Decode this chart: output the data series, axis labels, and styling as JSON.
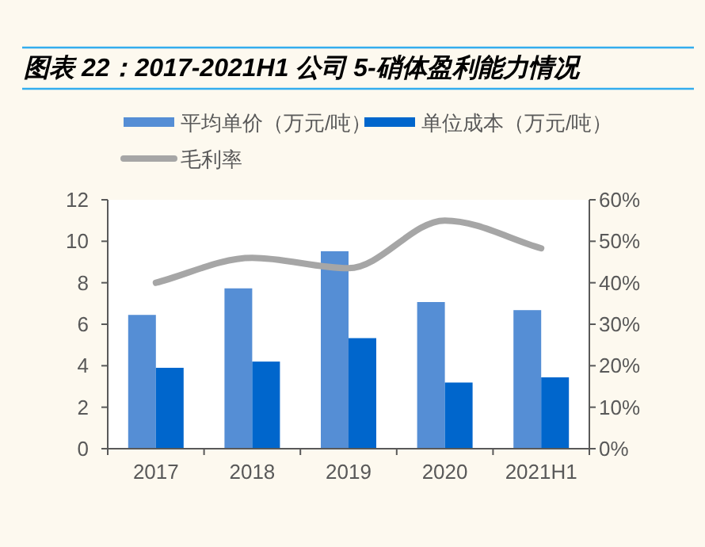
{
  "chart_data": {
    "type": "bar",
    "title": "图表 22：2017-2021H1 公司 5-硝体盈利能力情况",
    "categories": [
      "2017",
      "2018",
      "2019",
      "2020",
      "2021H1"
    ],
    "series": [
      {
        "name": "平均单价（万元/吨）",
        "color": "#558ed5",
        "values": [
          6.45,
          7.73,
          9.52,
          7.07,
          6.68
        ]
      },
      {
        "name": "单位成本（万元/吨）",
        "color": "#0066cc",
        "values": [
          3.9,
          4.2,
          5.33,
          3.19,
          3.44
        ]
      },
      {
        "name": "毛利率",
        "type": "line",
        "axis": "y2",
        "color": "#a6a6a6",
        "values": [
          40,
          46,
          43.5,
          55,
          48.3
        ]
      }
    ],
    "ylim": [
      0,
      12
    ],
    "yticks": [
      0,
      2,
      4,
      6,
      8,
      10,
      12
    ],
    "y2lim": [
      0,
      60
    ],
    "y2ticks": [
      {
        "value": 0,
        "label": "0%"
      },
      {
        "value": 10,
        "label": "10%"
      },
      {
        "value": 20,
        "label": "20%"
      },
      {
        "value": 30,
        "label": "30%"
      },
      {
        "value": 40,
        "label": "40%"
      },
      {
        "value": 50,
        "label": "50%"
      },
      {
        "value": 60,
        "label": "60%"
      }
    ],
    "legend": "top",
    "grid": false
  }
}
